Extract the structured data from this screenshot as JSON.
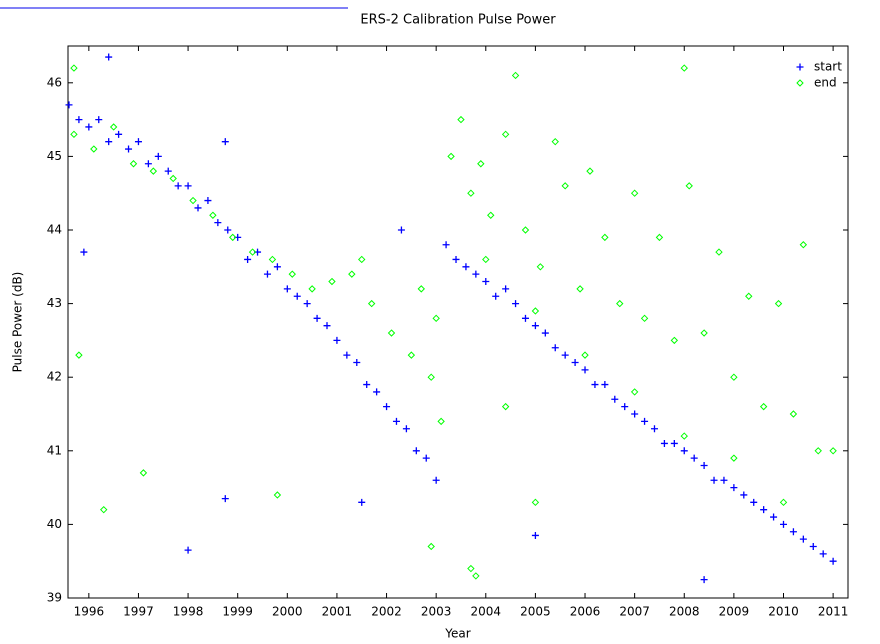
{
  "chart_data": {
    "type": "scatter",
    "title": "ERS-2 Calibration Pulse Power",
    "xlabel": "Year",
    "ylabel": "Pulse Power (dB)",
    "xlim": [
      1995.58,
      2011.3
    ],
    "ylim": [
      39,
      46.5
    ],
    "xticks": [
      1996,
      1997,
      1998,
      1999,
      2000,
      2001,
      2002,
      2003,
      2004,
      2005,
      2006,
      2007,
      2008,
      2009,
      2010,
      2011
    ],
    "yticks": [
      39,
      40,
      41,
      42,
      43,
      44,
      45,
      46
    ],
    "grid": false,
    "legend": "upper right",
    "series": [
      {
        "name": "start",
        "color": "#0000ff",
        "marker": "plus",
        "x": [
          1995.6,
          1995.8,
          1996.0,
          1996.2,
          1996.4,
          1996.6,
          1996.8,
          1997.0,
          1997.2,
          1997.4,
          1997.6,
          1997.8,
          1998.0,
          1998.2,
          1998.4,
          1998.6,
          1998.8,
          1999.0,
          1999.2,
          1999.4,
          1999.6,
          1999.8,
          2000.0,
          2000.2,
          2000.4,
          2000.6,
          2000.8,
          2001.0,
          2001.2,
          2001.4,
          2001.6,
          2001.8,
          2002.0,
          2002.2,
          2002.4,
          2002.6,
          2002.8,
          2003.0,
          2003.2,
          2003.4,
          2003.6,
          2003.8,
          2004.0,
          2004.2,
          2004.4,
          2004.6,
          2004.8,
          2005.0,
          2005.2,
          2005.4,
          2005.6,
          2005.8,
          2006.0,
          2006.2,
          2006.4,
          2006.6,
          2006.8,
          2007.0,
          2007.2,
          2007.4,
          2007.6,
          2007.8,
          2008.0,
          2008.2,
          2008.4,
          2008.6,
          2008.8,
          2009.0,
          2009.2,
          2009.4,
          2009.6,
          2009.8,
          2010.0,
          2010.2,
          2010.4,
          2010.6,
          2010.8,
          2011.0,
          1996.4,
          1995.9,
          1998.0,
          1998.75,
          1998.75,
          2002.3,
          2005.0,
          2008.4,
          2001.5
        ],
        "y": [
          45.7,
          45.5,
          45.4,
          45.5,
          45.2,
          45.3,
          45.1,
          45.2,
          44.9,
          45.0,
          44.8,
          44.6,
          44.6,
          44.3,
          44.4,
          44.1,
          44.0,
          43.9,
          43.6,
          43.7,
          43.4,
          43.5,
          43.2,
          43.1,
          43.0,
          42.8,
          42.7,
          42.5,
          42.3,
          42.2,
          41.9,
          41.8,
          41.6,
          41.4,
          41.3,
          41.0,
          40.9,
          40.6,
          43.8,
          43.6,
          43.5,
          43.4,
          43.3,
          43.1,
          43.2,
          43.0,
          42.8,
          42.7,
          42.6,
          42.4,
          42.3,
          42.2,
          42.1,
          41.9,
          41.9,
          41.7,
          41.6,
          41.5,
          41.4,
          41.3,
          41.1,
          41.1,
          41.0,
          40.9,
          40.8,
          40.6,
          40.6,
          40.5,
          40.4,
          40.3,
          40.2,
          40.1,
          40.0,
          39.9,
          39.8,
          39.7,
          39.6,
          39.5,
          46.35,
          43.7,
          39.65,
          40.35,
          45.2,
          44.0,
          39.85,
          39.25,
          40.3
        ]
      },
      {
        "name": "end",
        "color": "#00ff00",
        "marker": "diamond",
        "x": [
          1995.7,
          1996.1,
          1996.5,
          1996.9,
          1997.3,
          1997.7,
          1998.1,
          1998.5,
          1998.9,
          1999.3,
          1999.7,
          2000.1,
          2000.5,
          2000.9,
          2001.3,
          2001.7,
          2002.1,
          2002.5,
          2002.9,
          2003.1,
          2001.5,
          2002.7,
          2003.0,
          2003.3,
          2003.5,
          2003.7,
          2003.9,
          2004.1,
          2004.4,
          2004.6,
          2004.8,
          2005.1,
          2005.4,
          2005.6,
          2005.9,
          2006.1,
          2006.4,
          2006.7,
          2007.0,
          2007.2,
          2007.5,
          2007.8,
          2008.1,
          2008.4,
          2008.7,
          2009.0,
          2009.3,
          2009.6,
          2009.9,
          2010.2,
          2010.4,
          2010.7,
          2011.0,
          2004.0,
          2005.0,
          2006.0,
          2007.0,
          2008.0,
          2009.0,
          2010.0,
          1995.8,
          1996.3,
          1997.1,
          1999.8,
          2002.9,
          2003.7,
          2003.8,
          2008.0,
          1995.7,
          2004.4,
          2005.0
        ],
        "y": [
          45.3,
          45.1,
          45.4,
          44.9,
          44.8,
          44.7,
          44.4,
          44.2,
          43.9,
          43.7,
          43.6,
          43.4,
          43.2,
          43.3,
          43.4,
          43.0,
          42.6,
          42.3,
          42.0,
          41.4,
          43.6,
          43.2,
          42.8,
          45.0,
          45.5,
          44.5,
          44.9,
          44.2,
          45.3,
          46.1,
          44.0,
          43.5,
          45.2,
          44.6,
          43.2,
          44.8,
          43.9,
          43.0,
          44.5,
          42.8,
          43.9,
          42.5,
          44.6,
          42.6,
          43.7,
          42.0,
          43.1,
          41.6,
          43.0,
          41.5,
          43.8,
          41.0,
          41.0,
          43.6,
          42.9,
          42.3,
          41.8,
          41.2,
          40.9,
          40.3,
          42.3,
          40.2,
          40.7,
          40.4,
          39.7,
          39.4,
          39.3,
          46.2,
          46.2,
          41.6,
          40.3
        ]
      }
    ]
  }
}
